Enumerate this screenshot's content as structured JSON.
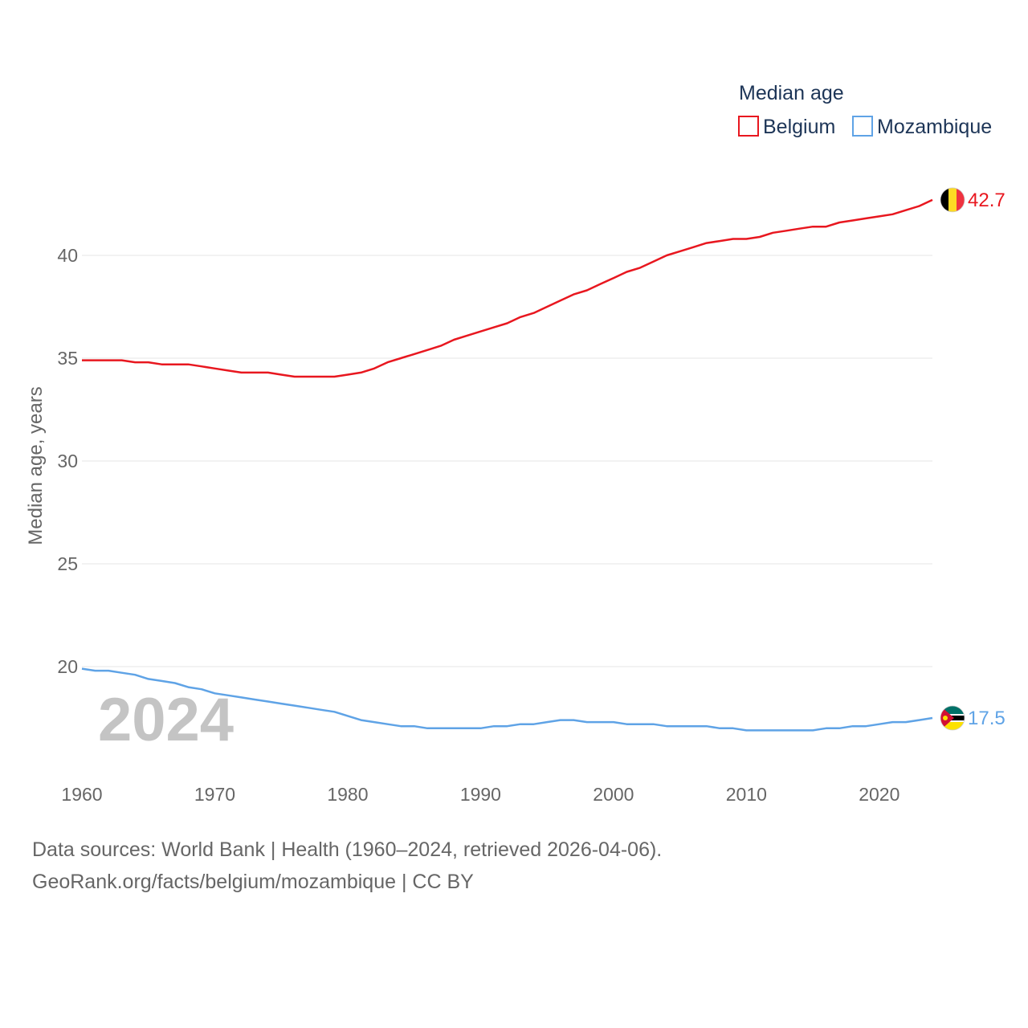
{
  "chart_data": {
    "type": "line",
    "title": "",
    "legend_title": "Median age",
    "ylabel": "Median age, years",
    "xlabel": "",
    "xlim": [
      1960,
      2024
    ],
    "ylim": [
      15.6,
      43
    ],
    "yticks": [
      20,
      25,
      30,
      35,
      40
    ],
    "xticks": [
      1960,
      1970,
      1980,
      1990,
      2000,
      2010,
      2020
    ],
    "x": [
      1960,
      1961,
      1962,
      1963,
      1964,
      1965,
      1966,
      1967,
      1968,
      1969,
      1970,
      1971,
      1972,
      1973,
      1974,
      1975,
      1976,
      1977,
      1978,
      1979,
      1980,
      1981,
      1982,
      1983,
      1984,
      1985,
      1986,
      1987,
      1988,
      1989,
      1990,
      1991,
      1992,
      1993,
      1994,
      1995,
      1996,
      1997,
      1998,
      1999,
      2000,
      2001,
      2002,
      2003,
      2004,
      2005,
      2006,
      2007,
      2008,
      2009,
      2010,
      2011,
      2012,
      2013,
      2014,
      2015,
      2016,
      2017,
      2018,
      2019,
      2020,
      2021,
      2022,
      2023,
      2024
    ],
    "series": [
      {
        "name": "Belgium",
        "color": "#e8171f",
        "flag": "belgium-flag",
        "end_label": "42.7",
        "values": [
          34.9,
          34.9,
          34.9,
          34.9,
          34.8,
          34.8,
          34.7,
          34.7,
          34.7,
          34.6,
          34.5,
          34.4,
          34.3,
          34.3,
          34.3,
          34.2,
          34.1,
          34.1,
          34.1,
          34.1,
          34.2,
          34.3,
          34.5,
          34.8,
          35.0,
          35.2,
          35.4,
          35.6,
          35.9,
          36.1,
          36.3,
          36.5,
          36.7,
          37.0,
          37.2,
          37.5,
          37.8,
          38.1,
          38.3,
          38.6,
          38.9,
          39.2,
          39.4,
          39.7,
          40.0,
          40.2,
          40.4,
          40.6,
          40.7,
          40.8,
          40.8,
          40.9,
          41.1,
          41.2,
          41.3,
          41.4,
          41.4,
          41.6,
          41.7,
          41.8,
          41.9,
          42.0,
          42.2,
          42.4,
          42.7
        ]
      },
      {
        "name": "Mozambique",
        "color": "#5fa3e6",
        "flag": "mozambique-flag",
        "end_label": "17.5",
        "values": [
          19.9,
          19.8,
          19.8,
          19.7,
          19.6,
          19.4,
          19.3,
          19.2,
          19.0,
          18.9,
          18.7,
          18.6,
          18.5,
          18.4,
          18.3,
          18.2,
          18.1,
          18.0,
          17.9,
          17.8,
          17.6,
          17.4,
          17.3,
          17.2,
          17.1,
          17.1,
          17.0,
          17.0,
          17.0,
          17.0,
          17.0,
          17.1,
          17.1,
          17.2,
          17.2,
          17.3,
          17.4,
          17.4,
          17.3,
          17.3,
          17.3,
          17.2,
          17.2,
          17.2,
          17.1,
          17.1,
          17.1,
          17.1,
          17.0,
          17.0,
          16.9,
          16.9,
          16.9,
          16.9,
          16.9,
          16.9,
          17.0,
          17.0,
          17.1,
          17.1,
          17.2,
          17.3,
          17.3,
          17.4,
          17.5
        ]
      }
    ],
    "current_year": "2024"
  },
  "footer": {
    "sources": "Data sources: World Bank | Health (1960–2024, retrieved 2026-04-06).",
    "credit": "GeoRank.org/facts/belgium/mozambique | CC BY"
  }
}
